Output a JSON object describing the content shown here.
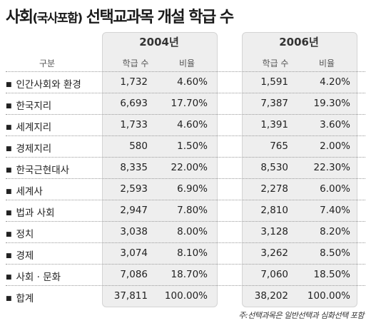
{
  "title": {
    "main": "사회",
    "paren": "(국사포함)",
    "rest": " 선택교과목 개설 학급 수"
  },
  "note": "주:선택과목은 일반선택과 심화선택 포함",
  "chart_data": {
    "type": "table",
    "row_header": "구분",
    "years": [
      "2004년",
      "2006년"
    ],
    "sub_headers": [
      "학급 수",
      "비율"
    ],
    "rows": [
      {
        "label": "인간사회와 환경",
        "y2004": {
          "count": "1,732",
          "ratio": "4.60%"
        },
        "y2006": {
          "count": "1,591",
          "ratio": "4.20%"
        }
      },
      {
        "label": "한국지리",
        "y2004": {
          "count": "6,693",
          "ratio": "17.70%"
        },
        "y2006": {
          "count": "7,387",
          "ratio": "19.30%"
        }
      },
      {
        "label": "세계지리",
        "y2004": {
          "count": "1,733",
          "ratio": "4.60%"
        },
        "y2006": {
          "count": "1,391",
          "ratio": "3.60%"
        }
      },
      {
        "label": "경제지리",
        "y2004": {
          "count": "580",
          "ratio": "1.50%"
        },
        "y2006": {
          "count": "765",
          "ratio": "2.00%"
        }
      },
      {
        "label": "한국근현대사",
        "y2004": {
          "count": "8,335",
          "ratio": "22.00%"
        },
        "y2006": {
          "count": "8,530",
          "ratio": "22.30%"
        }
      },
      {
        "label": "세계사",
        "y2004": {
          "count": "2,593",
          "ratio": "6.90%"
        },
        "y2006": {
          "count": "2,278",
          "ratio": "6.00%"
        }
      },
      {
        "label": "법과 사회",
        "y2004": {
          "count": "2,947",
          "ratio": "7.80%"
        },
        "y2006": {
          "count": "2,810",
          "ratio": "7.40%"
        }
      },
      {
        "label": "정치",
        "y2004": {
          "count": "3,038",
          "ratio": "8.00%"
        },
        "y2006": {
          "count": "3,128",
          "ratio": "8.20%"
        }
      },
      {
        "label": "경제",
        "y2004": {
          "count": "3,074",
          "ratio": "8.10%"
        },
        "y2006": {
          "count": "3,262",
          "ratio": "8.50%"
        }
      },
      {
        "label": "사회 · 문화",
        "y2004": {
          "count": "7,086",
          "ratio": "18.70%"
        },
        "y2006": {
          "count": "7,060",
          "ratio": "18.50%"
        }
      },
      {
        "label": "합계",
        "y2004": {
          "count": "37,811",
          "ratio": "100.00%"
        },
        "y2006": {
          "count": "38,202",
          "ratio": "100.00%"
        }
      }
    ]
  }
}
